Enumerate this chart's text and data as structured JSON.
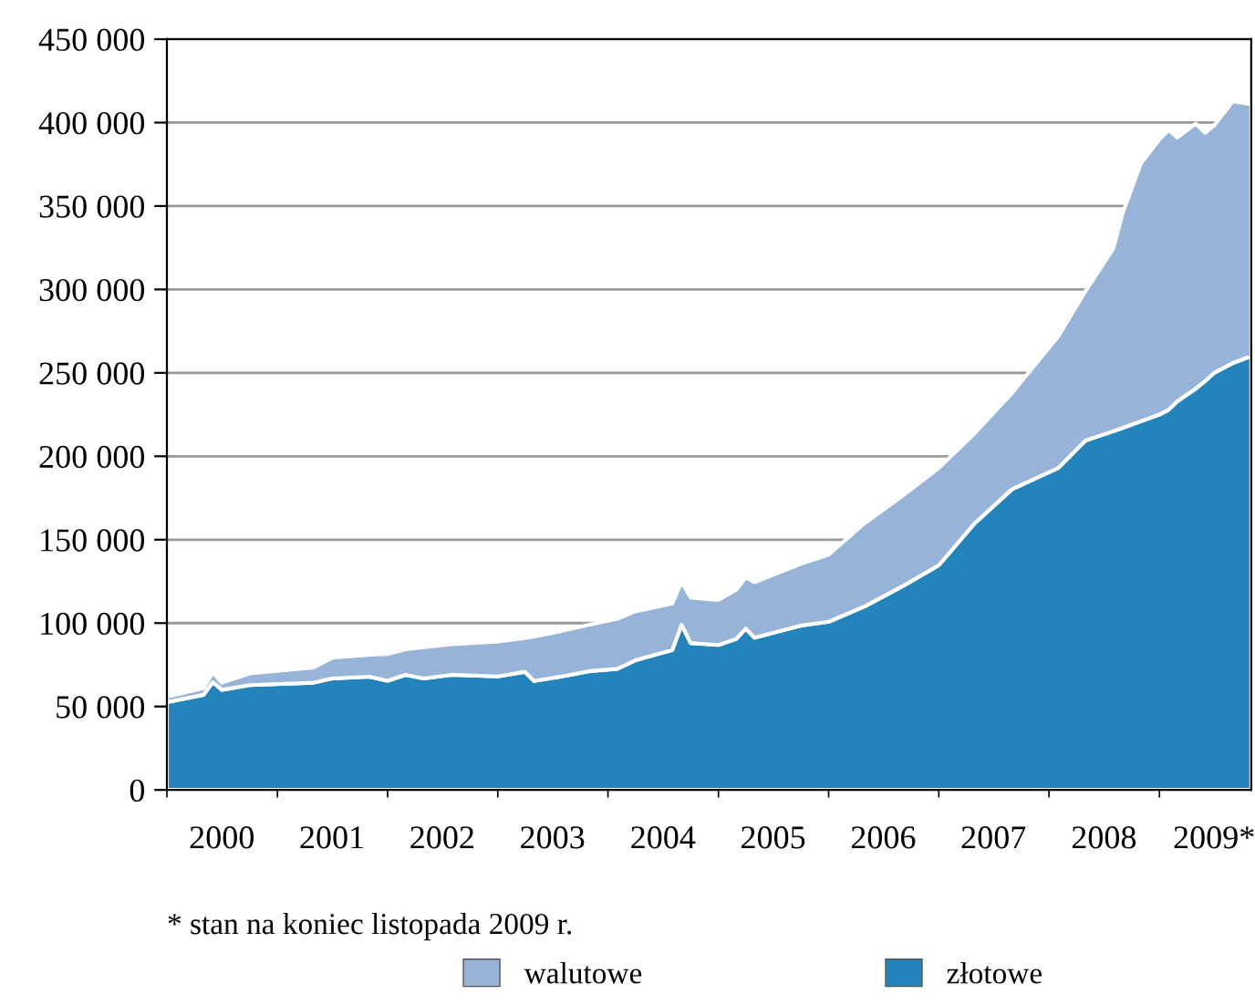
{
  "chart_data": {
    "type": "area",
    "stacked": true,
    "x": [
      "2000-01",
      "2000-05",
      "2000-06",
      "2000-07",
      "2000-10",
      "2001-05",
      "2001-07",
      "2001-11",
      "2002-01",
      "2002-03",
      "2002-05",
      "2002-08",
      "2003-01",
      "2003-04",
      "2003-05",
      "2003-08",
      "2003-11",
      "2004-02",
      "2004-04",
      "2004-08",
      "2004-09",
      "2004-10",
      "2005-01",
      "2005-03",
      "2005-04",
      "2005-05",
      "2005-10",
      "2006-01",
      "2006-05",
      "2006-09",
      "2007-01",
      "2007-05",
      "2007-09",
      "2008-02",
      "2008-05",
      "2008-08",
      "2008-09",
      "2008-11",
      "2009-01",
      "2009-02",
      "2009-03",
      "2009-05",
      "2009-06",
      "2009-07",
      "2009-09",
      "2009-11"
    ],
    "series": [
      {
        "name": "złotowe",
        "color": "#2383bb",
        "values": [
          52600,
          57000,
          64600,
          60000,
          62800,
          64300,
          66800,
          67900,
          65400,
          69000,
          66800,
          69000,
          68000,
          70800,
          65300,
          68000,
          71200,
          72600,
          77700,
          83900,
          98900,
          88000,
          86900,
          90500,
          96700,
          91200,
          98500,
          100800,
          110000,
          121900,
          134700,
          160000,
          180300,
          193000,
          209500,
          215000,
          217000,
          221000,
          225000,
          228000,
          233000,
          240500,
          245000,
          250000,
          255900,
          260000
        ]
      },
      {
        "name": "walutowe",
        "color": "#97b3d7",
        "values": [
          3200,
          4000,
          5800,
          4300,
          7000,
          9100,
          12400,
          13100,
          16000,
          15300,
          18700,
          18300,
          21000,
          20200,
          26700,
          27300,
          27800,
          30000,
          29300,
          27800,
          25900,
          27300,
          27000,
          29500,
          30700,
          33300,
          37000,
          40200,
          50000,
          54100,
          58300,
          54000,
          57700,
          79000,
          89500,
          109500,
          128700,
          154600,
          165000,
          167600,
          158000,
          158900,
          148900,
          148300,
          156900,
          151000
        ]
      }
    ],
    "xlim": [
      "2000-01",
      "2009-11"
    ],
    "xticks": [
      {
        "value": "2000-01",
        "label": null
      },
      {
        "value": "2000-07",
        "label": "2000"
      },
      {
        "value": "2001-01",
        "label": null
      },
      {
        "value": "2001-07",
        "label": "2001"
      },
      {
        "value": "2002-01",
        "label": null
      },
      {
        "value": "2002-07",
        "label": "2002"
      },
      {
        "value": "2003-01",
        "label": null
      },
      {
        "value": "2003-07",
        "label": "2003"
      },
      {
        "value": "2004-01",
        "label": null
      },
      {
        "value": "2004-07",
        "label": "2004"
      },
      {
        "value": "2005-01",
        "label": null
      },
      {
        "value": "2005-07",
        "label": "2005"
      },
      {
        "value": "2006-01",
        "label": null
      },
      {
        "value": "2006-07",
        "label": "2006"
      },
      {
        "value": "2007-01",
        "label": null
      },
      {
        "value": "2007-07",
        "label": "2007"
      },
      {
        "value": "2008-01",
        "label": null
      },
      {
        "value": "2008-07",
        "label": "2008"
      },
      {
        "value": "2009-01",
        "label": null
      },
      {
        "value": "2009-07",
        "label": "2009*"
      }
    ],
    "ylim": [
      0,
      450000
    ],
    "yticks": [
      0,
      {
        "value": 50000,
        "label": "50 000"
      },
      {
        "value": 100000,
        "label": "100 000"
      },
      {
        "value": 150000,
        "label": "150 000"
      },
      {
        "value": 200000,
        "label": "200 000"
      },
      {
        "value": 250000,
        "label": "250 000"
      },
      {
        "value": 300000,
        "label": "300 000"
      },
      {
        "value": 350000,
        "label": "350 000"
      },
      {
        "value": 400000,
        "label": "400 000"
      },
      {
        "value": 450000,
        "label": "450 000"
      }
    ],
    "grid": "y",
    "legend": "bottom",
    "annotations": [
      "* stan na koniec listopada 2009 r."
    ]
  }
}
